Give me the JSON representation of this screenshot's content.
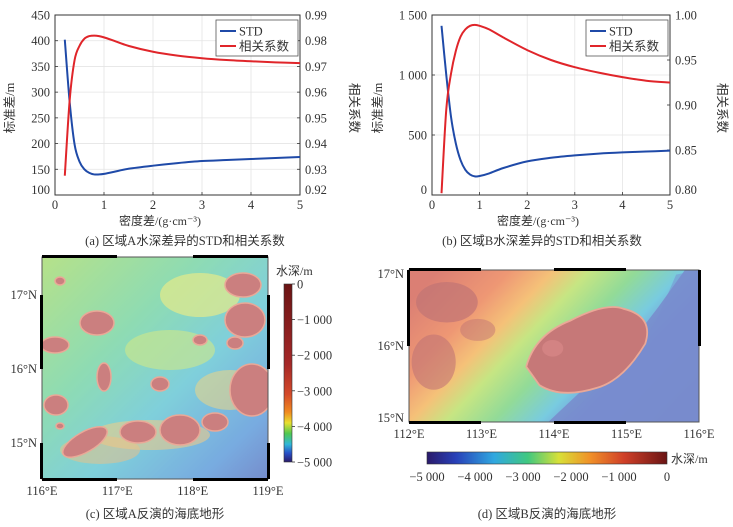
{
  "chart_data": [
    {
      "id": "a",
      "type": "line",
      "caption": "(a) 区域A水深差异的STD和相关系数",
      "xlabel": "密度差/(g·cm⁻³)",
      "ylabel_left": "标准差/m",
      "ylabel_right": "相关系数",
      "xlim": [
        0,
        5
      ],
      "ylim_left": [
        100,
        450
      ],
      "ylim_right": [
        0.92,
        0.99
      ],
      "xticks": [
        "0",
        "1",
        "2",
        "3",
        "4",
        "5"
      ],
      "yticks_left": [
        "100",
        "150",
        "200",
        "250",
        "300",
        "350",
        "400",
        "450"
      ],
      "yticks_right": [
        "0.92",
        "0.93",
        "0.94",
        "0.95",
        "0.96",
        "0.97",
        "0.98",
        "0.99"
      ],
      "grid": true,
      "legend_position": "top-right",
      "series": [
        {
          "name": "STD",
          "axis": "left",
          "color": "#1f4aa8",
          "x": [
            0.2,
            0.3,
            0.4,
            0.5,
            0.6,
            0.7,
            0.8,
            0.9,
            1.0,
            1.2,
            1.5,
            2.0,
            2.5,
            3.0,
            3.5,
            4.0,
            4.5,
            5.0
          ],
          "y": [
            402,
            280,
            198,
            165,
            150,
            143,
            140,
            140,
            141,
            145,
            151,
            157,
            162,
            166,
            168,
            170,
            172,
            174
          ]
        },
        {
          "name": "相关系数",
          "axis": "right",
          "color": "#e0252a",
          "x": [
            0.2,
            0.3,
            0.4,
            0.5,
            0.6,
            0.7,
            0.8,
            0.9,
            1.0,
            1.2,
            1.5,
            2.0,
            2.5,
            3.0,
            3.5,
            4.0,
            4.5,
            5.0
          ],
          "y": [
            0.9275,
            0.957,
            0.9725,
            0.978,
            0.9808,
            0.9818,
            0.982,
            0.9818,
            0.9813,
            0.98,
            0.978,
            0.9757,
            0.9742,
            0.9732,
            0.9725,
            0.972,
            0.9716,
            0.9713
          ]
        }
      ]
    },
    {
      "id": "b",
      "type": "line",
      "caption": "(b) 区域B水深差异的STD和相关系数",
      "xlabel": "密度差/(g·cm⁻³)",
      "ylabel_left": "标准差/m",
      "ylabel_right": "相关系数",
      "xlim": [
        0,
        5
      ],
      "ylim_left": [
        0,
        1500
      ],
      "ylim_right": [
        0.8,
        1.0
      ],
      "xticks": [
        "0",
        "1",
        "2",
        "3",
        "4",
        "5"
      ],
      "yticks_left": [
        "0",
        "500",
        "1 000",
        "1 500"
      ],
      "yticks_right": [
        "0.80",
        "0.85",
        "0.90",
        "0.95",
        "1.00"
      ],
      "grid": true,
      "legend_position": "top-right",
      "series": [
        {
          "name": "STD",
          "axis": "left",
          "color": "#1f4aa8",
          "x": [
            0.2,
            0.3,
            0.4,
            0.5,
            0.6,
            0.7,
            0.8,
            0.9,
            1.0,
            1.2,
            1.5,
            2.0,
            2.5,
            3.0,
            3.5,
            4.0,
            4.5,
            5.0
          ],
          "y": [
            1410,
            1000,
            650,
            430,
            290,
            210,
            170,
            155,
            158,
            180,
            225,
            280,
            310,
            330,
            345,
            355,
            362,
            370
          ]
        },
        {
          "name": "相关系数",
          "axis": "right",
          "color": "#e0252a",
          "x": [
            0.2,
            0.3,
            0.4,
            0.5,
            0.6,
            0.7,
            0.8,
            0.9,
            1.0,
            1.2,
            1.5,
            2.0,
            2.5,
            3.0,
            3.5,
            4.0,
            4.5,
            5.0
          ],
          "y": [
            0.802,
            0.895,
            0.935,
            0.96,
            0.976,
            0.984,
            0.988,
            0.989,
            0.988,
            0.984,
            0.975,
            0.961,
            0.95,
            0.942,
            0.936,
            0.931,
            0.927,
            0.925
          ]
        }
      ]
    }
  ],
  "maps": [
    {
      "id": "c",
      "caption": "(c) 区域A反演的海底地形",
      "x_ticks": [
        "116°E",
        "117°E",
        "118°E",
        "119°E"
      ],
      "y_ticks": [
        "15°N",
        "16°N",
        "17°N"
      ],
      "colorbar_title": "水深/m",
      "colorbar_ticks": [
        "0",
        "−1 000",
        "−2 000",
        "−3 000",
        "−4 000",
        "−5 000"
      ],
      "colorbar_orientation": "vertical"
    },
    {
      "id": "d",
      "caption": "(d) 区域B反演的海底地形",
      "x_ticks": [
        "112°E",
        "113°E",
        "114°E",
        "115°E",
        "116°E"
      ],
      "y_ticks": [
        "15°N",
        "16°N",
        "17°N"
      ],
      "colorbar_title": "水深/m",
      "colorbar_ticks": [
        "−5 000",
        "−4 000",
        "−3 000",
        "−2 000",
        "−1 000",
        "0"
      ],
      "colorbar_orientation": "horizontal"
    }
  ],
  "colors": {
    "std": "#1f4aa8",
    "corr": "#e0252a",
    "deep": "#2a2a7a",
    "shallow": "#7a1a1a"
  }
}
